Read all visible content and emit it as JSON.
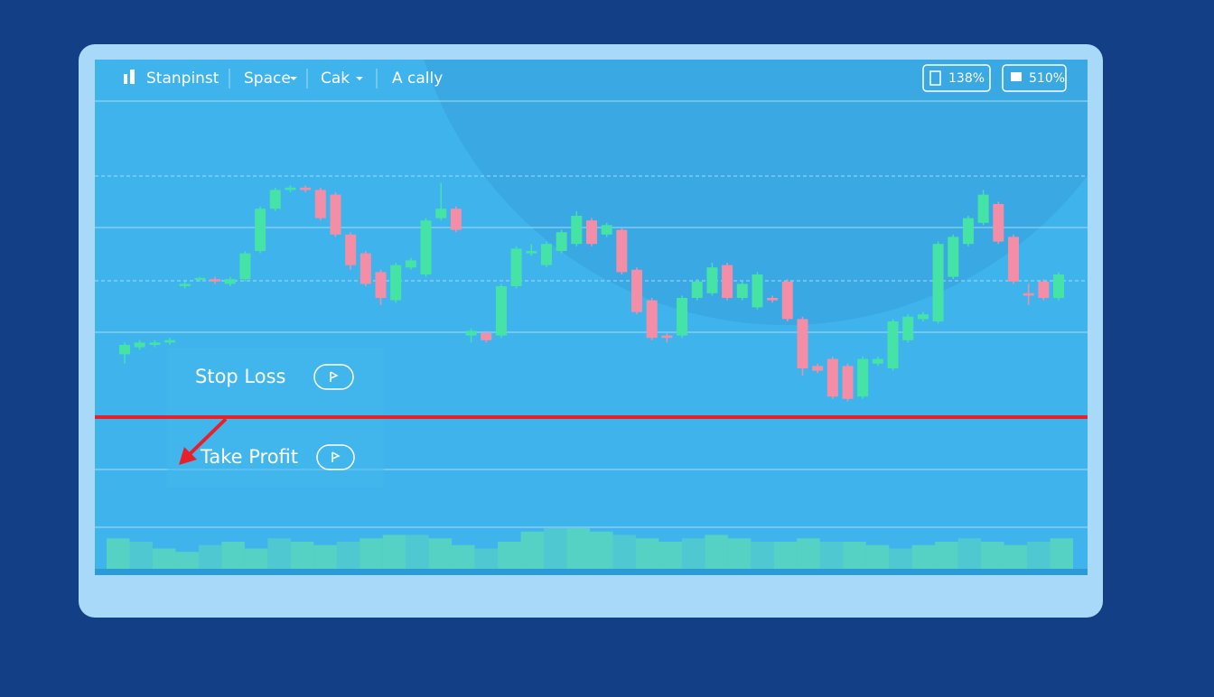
{
  "toolbar": {
    "items": [
      "Stanpinst",
      "Sрace",
      "Cak",
      "A cally"
    ],
    "badges": [
      "138%",
      "510%"
    ]
  },
  "orders": {
    "stop_loss": "Stop Loss",
    "take_profit": "Take Profit"
  },
  "chart_data": [
    {
      "type": "candlestick",
      "open": [
        26,
        29,
        30,
        31,
        55,
        58,
        58,
        56,
        58,
        70,
        88,
        96,
        97,
        96,
        94,
        77,
        69,
        61,
        49,
        63,
        60,
        84,
        88,
        34,
        35,
        34,
        55,
        69,
        64,
        70,
        73,
        83,
        77,
        79,
        62,
        49,
        34,
        34,
        50,
        52,
        64,
        50,
        46,
        50,
        57,
        41,
        21,
        24,
        21,
        8,
        22,
        20,
        32,
        41,
        40,
        59,
        73,
        82,
        90,
        76,
        52,
        57,
        50
      ],
      "high": [
        31,
        32,
        32,
        33,
        57,
        59,
        59,
        59,
        70,
        89,
        97,
        98,
        98,
        97,
        95,
        78,
        70,
        62,
        65,
        67,
        84,
        99,
        89,
        37,
        36,
        56,
        72,
        73,
        74,
        79,
        87,
        84,
        82,
        80,
        63,
        50,
        35,
        51,
        58,
        65,
        65,
        57,
        61,
        51,
        58,
        42,
        22,
        25,
        22,
        25,
        25,
        41,
        43,
        44,
        74,
        77,
        85,
        96,
        91,
        77,
        56,
        58,
        61
      ],
      "low": [
        22,
        28,
        29,
        30,
        54,
        57,
        56,
        55,
        57,
        69,
        87,
        95,
        95,
        83,
        76,
        62,
        55,
        47,
        48,
        62,
        59,
        83,
        78,
        31,
        31,
        33,
        54,
        68,
        63,
        69,
        72,
        72,
        76,
        60,
        43,
        32,
        31,
        33,
        49,
        51,
        49,
        49,
        45,
        48,
        40,
        17,
        18,
        7,
        6,
        7,
        21,
        19,
        31,
        40,
        39,
        58,
        72,
        81,
        73,
        56,
        47,
        49,
        49
      ],
      "close": [
        30,
        31,
        31,
        32,
        56,
        58.5,
        57,
        58,
        69,
        88,
        96,
        97,
        96,
        84,
        77,
        64,
        56,
        50,
        64,
        66,
        83,
        88,
        79,
        36,
        32,
        55,
        71,
        70,
        73,
        78,
        85,
        73,
        81,
        61,
        44,
        33,
        33,
        50,
        57,
        63,
        50,
        56,
        60,
        49,
        41,
        20,
        19,
        8,
        7,
        24,
        24,
        40,
        42,
        43,
        73,
        76,
        84,
        94,
        74,
        57,
        51,
        50,
        60
      ],
      "up_color": "#46e3a6",
      "down_color": "#f48ea6",
      "ylim": [
        0,
        100
      ]
    },
    {
      "type": "bar",
      "values": [
        9,
        8,
        6,
        5,
        7,
        8,
        6,
        9,
        8,
        7,
        8,
        9,
        10,
        10,
        9,
        7,
        6,
        8,
        11,
        12,
        12,
        11,
        10,
        9,
        8,
        9,
        10,
        9,
        8,
        8,
        9,
        8,
        8,
        7,
        6,
        7,
        8,
        9,
        8,
        7,
        8,
        9
      ],
      "color": "#5fdcb8",
      "ylim": [
        0,
        12
      ]
    }
  ]
}
